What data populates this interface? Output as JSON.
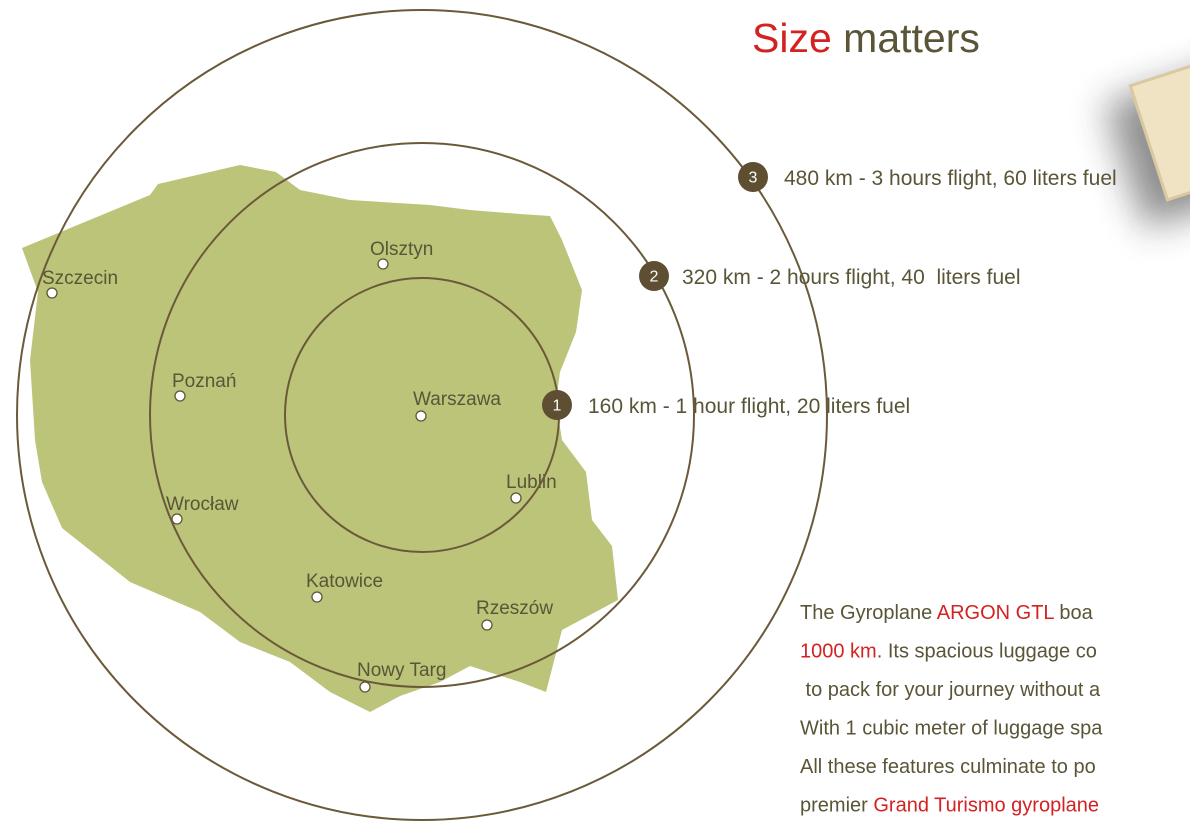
{
  "title": {
    "first": "Size",
    "second": "matters"
  },
  "ranges": [
    {
      "number": "3",
      "text": "480 km - 3 hours flight, 60 liters fuel"
    },
    {
      "number": "2",
      "text": "320 km - 2 hours flight, 40  liters fuel"
    },
    {
      "number": "1",
      "text": "160 km - 1 hour flight, 20 liters fuel"
    }
  ],
  "cities": [
    "Szczecin",
    "Olsztyn",
    "Poznań",
    "Warszawa",
    "Wrocław",
    "Lublin",
    "Katowice",
    "Rzeszów",
    "Nowy Targ"
  ],
  "paragraph": [
    [
      {
        "text": "The Gyroplane "
      },
      {
        "text": "ARGON GTL",
        "emphasis": true
      },
      {
        "text": " boa"
      }
    ],
    [
      {
        "text": "1000 km",
        "emphasis": true
      },
      {
        "text": ". Its spacious luggage co"
      }
    ],
    [
      {
        "text": " to pack for your journey without a"
      }
    ],
    [
      {
        "text": "With 1 cubic meter of luggage spa"
      }
    ],
    [
      {
        "text": "All these features culminate to po"
      }
    ],
    [
      {
        "text": "premier "
      },
      {
        "text": "Grand Turismo gyroplane",
        "emphasis": true
      }
    ]
  ]
}
